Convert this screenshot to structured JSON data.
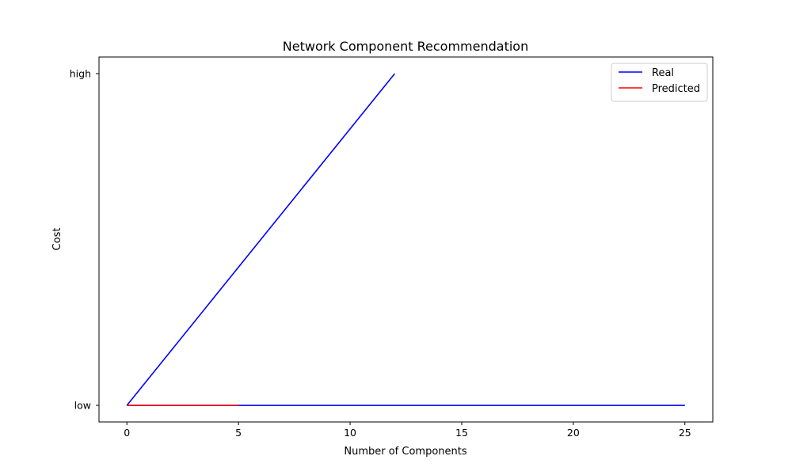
{
  "chart_data": {
    "type": "line",
    "title": "Network Component Recommendation",
    "xlabel": "Number of Components",
    "ylabel": "Cost",
    "xlim": [
      -1.25,
      26.25
    ],
    "ylim": [
      -0.05,
      1.05
    ],
    "x_ticks": [
      0,
      5,
      10,
      15,
      20,
      25
    ],
    "x_tick_labels": [
      "0",
      "5",
      "10",
      "15",
      "20",
      "25"
    ],
    "y_ticks": [
      0,
      1
    ],
    "y_tick_labels": [
      "low",
      "high"
    ],
    "grid": false,
    "legend_position": "top-right",
    "series": [
      {
        "name": "Real",
        "color": "#0000ff",
        "segments": [
          [
            [
              0,
              0
            ],
            [
              12,
              1
            ]
          ],
          [
            [
              0,
              0
            ],
            [
              25,
              0
            ]
          ]
        ]
      },
      {
        "name": "Predicted",
        "color": "#ff0000",
        "segments": [
          [
            [
              0,
              0
            ],
            [
              5,
              0
            ]
          ]
        ]
      }
    ]
  }
}
